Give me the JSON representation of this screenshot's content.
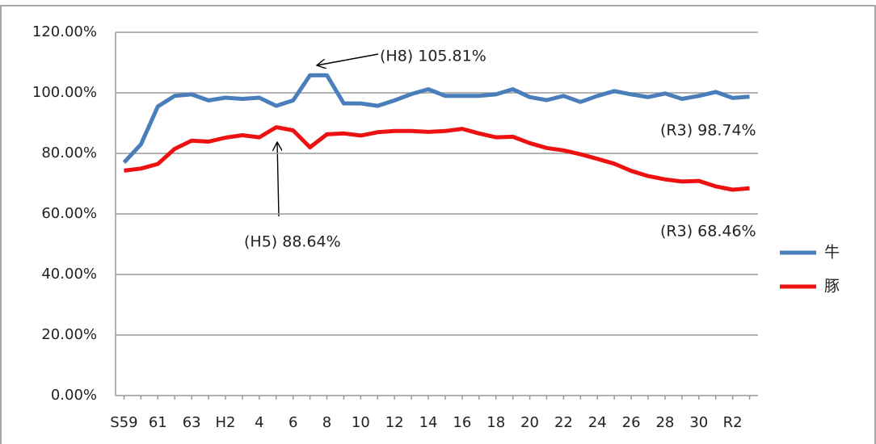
{
  "chart_data": {
    "type": "line",
    "categories": [
      "S59",
      null,
      "61",
      null,
      "63",
      null,
      "H2",
      null,
      "4",
      null,
      "6",
      null,
      "8",
      null,
      "10",
      null,
      "12",
      null,
      "14",
      null,
      "16",
      null,
      "18",
      null,
      "20",
      null,
      "22",
      null,
      "24",
      null,
      "26",
      null,
      "28",
      null,
      "30",
      null,
      "R2",
      null
    ],
    "series": [
      {
        "name": "牛",
        "color": "#4a7ebb",
        "values": [
          77,
          83,
          95.5,
          99,
          99.5,
          97.5,
          98.4,
          98,
          98.4,
          95.7,
          97.5,
          105.8,
          105.81,
          96.5,
          96.5,
          95.7,
          97.5,
          99.6,
          101.2,
          99,
          99,
          99,
          99.5,
          101.2,
          98.6,
          97.6,
          99,
          97,
          99,
          100.6,
          99.5,
          98.6,
          99.8,
          98,
          99,
          100.3,
          98.3,
          98.74
        ]
      },
      {
        "name": "豚",
        "color": "#ee1111",
        "values": [
          74.3,
          75,
          76.5,
          81.5,
          84.2,
          83.9,
          85.2,
          86,
          85.3,
          88.64,
          87.6,
          82,
          86.3,
          86.6,
          85.9,
          87,
          87.4,
          87.4,
          87.1,
          87.4,
          88.1,
          86.6,
          85.3,
          85.5,
          83.4,
          81.8,
          81,
          79.7,
          78.2,
          76.6,
          74.2,
          72.5,
          71.4,
          70.7,
          70.9,
          69.1,
          68,
          68.46
        ]
      }
    ],
    "ylim": [
      0,
      120
    ],
    "yticks": [
      {
        "value": 0,
        "label": "0.00%"
      },
      {
        "value": 20,
        "label": "20.00%"
      },
      {
        "value": 40,
        "label": "40.00%"
      },
      {
        "value": 60,
        "label": "60.00%"
      },
      {
        "value": 80,
        "label": "80.00%"
      },
      {
        "value": 100,
        "label": "100.00%"
      },
      {
        "value": 120,
        "label": "120.00%"
      }
    ],
    "grid": true,
    "legend": "right",
    "annotations": [
      "(H8) 105.81%",
      "(H5) 88.64%",
      "(R3) 98.74%",
      "(R3) 68.46%"
    ]
  }
}
